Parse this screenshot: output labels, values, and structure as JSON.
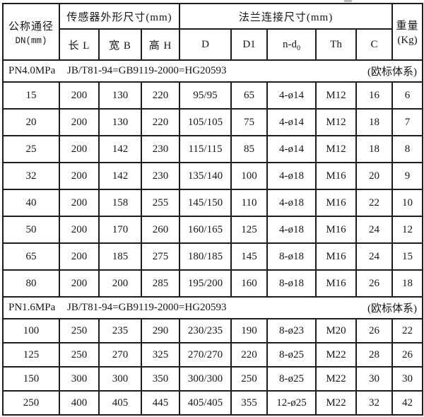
{
  "colors": {
    "border": "#1d1d1d",
    "text": "#161616",
    "background": "#ffffff"
  },
  "table": {
    "header": {
      "dn_title": "公称通径",
      "dn_subtitle": "DN(mm)",
      "sensor_group": "传感器外形尺寸(mm)",
      "sensor_cols": [
        "长 L",
        "宽 B",
        "高 H"
      ],
      "flange_group": "法兰连接尺寸(mm)",
      "flange_col_d": "D",
      "flange_col_d1": "D1",
      "flange_col_nd_base": "n-d",
      "flange_col_nd_sub": "0",
      "flange_col_th": "Th",
      "flange_col_c": "C",
      "weight_title": "重量",
      "weight_unit": "(Kg)"
    },
    "sections": [
      {
        "label": "PN4.0MPa",
        "standard": "JB/T81-94=GB9119-2000=HG20593",
        "note": "(欧标体系)",
        "rows": [
          [
            "15",
            "200",
            "130",
            "220",
            "95/95",
            "65",
            "4-ø14",
            "M12",
            "16",
            "6"
          ],
          [
            "20",
            "200",
            "130",
            "220",
            "105/105",
            "75",
            "4-ø14",
            "M12",
            "18",
            "7"
          ],
          [
            "25",
            "200",
            "142",
            "230",
            "115/115",
            "85",
            "4-ø14",
            "M12",
            "18",
            "8"
          ],
          [
            "32",
            "200",
            "142",
            "230",
            "135/140",
            "100",
            "4-ø18",
            "M16",
            "20",
            "9"
          ],
          [
            "40",
            "200",
            "158",
            "255",
            "145/150",
            "110",
            "4-ø18",
            "M16",
            "22",
            "10"
          ],
          [
            "50",
            "200",
            "170",
            "260",
            "160/165",
            "125",
            "4-ø18",
            "M16",
            "24",
            "12"
          ],
          [
            "65",
            "200",
            "185",
            "275",
            "180/185",
            "145",
            "8-ø18",
            "M16",
            "24",
            "15"
          ],
          [
            "80",
            "200",
            "200",
            "285",
            "195/200",
            "160",
            "8-ø18",
            "M16",
            "26",
            "18"
          ]
        ]
      },
      {
        "label": "PN1.6MPa",
        "standard": "JB/T81-94=GB9119-2000=HG20593",
        "note": "(欧标体系)",
        "rows": [
          [
            "100",
            "250",
            "235",
            "290",
            "230/235",
            "190",
            "8-ø23",
            "M20",
            "26",
            "22"
          ],
          [
            "125",
            "250",
            "270",
            "325",
            "270/270",
            "220",
            "8-ø25",
            "M22",
            "28",
            "26"
          ],
          [
            "150",
            "300",
            "300",
            "350",
            "300/300",
            "250",
            "8-ø25",
            "M22",
            "30",
            "30"
          ],
          [
            "250",
            "400",
            "405",
            "445",
            "405/405",
            "355",
            "12-ø25",
            "M22",
            "32",
            "42"
          ]
        ]
      }
    ]
  }
}
